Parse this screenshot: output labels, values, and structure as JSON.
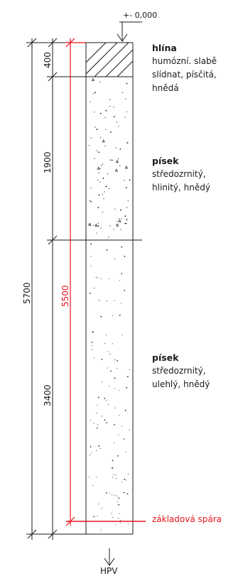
{
  "elevation": {
    "label": "+- 0,000"
  },
  "dimensions": {
    "total": "5700",
    "depth_to_foundation": "5500",
    "layers": [
      "400",
      "1900",
      "3400"
    ]
  },
  "layers": [
    {
      "name": "hlína",
      "description": [
        "humózní. slabě",
        "slídnat, písčitá,",
        "hnědá"
      ],
      "thickness_mm": 400,
      "hatch": "diagonal"
    },
    {
      "name": "písek",
      "description": [
        "středozrnitý,",
        "hlinitý, hnědý"
      ],
      "thickness_mm": 1900,
      "hatch": "dots-triangles"
    },
    {
      "name": "písek",
      "description": [
        "středozrnitý,",
        "ulehlý, hnědý"
      ],
      "thickness_mm": 3400,
      "hatch": "dots"
    }
  ],
  "foundation": {
    "label": "základová spára",
    "depth_mm": 5500
  },
  "groundwater": {
    "label": "HPV"
  },
  "colors": {
    "line": "#1a1a1a",
    "red": "#e8141c",
    "text": "#1a1a1a"
  }
}
